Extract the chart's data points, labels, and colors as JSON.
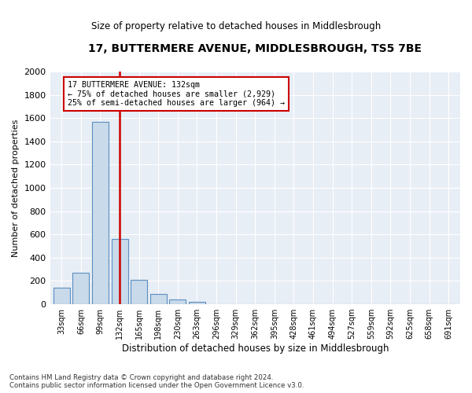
{
  "title": "17, BUTTERMERE AVENUE, MIDDLESBROUGH, TS5 7BE",
  "subtitle": "Size of property relative to detached houses in Middlesbrough",
  "xlabel": "Distribution of detached houses by size in Middlesbrough",
  "ylabel": "Number of detached properties",
  "annotation_line1": "17 BUTTERMERE AVENUE: 132sqm",
  "annotation_line2": "← 75% of detached houses are smaller (2,929)",
  "annotation_line3": "25% of semi-detached houses are larger (964) →",
  "bar_color": "#c9daea",
  "bar_edge_color": "#5a8fc0",
  "vline_color": "#cc0000",
  "vline_x_index": 3,
  "categories": [
    "33sqm",
    "66sqm",
    "99sqm",
    "132sqm",
    "165sqm",
    "198sqm",
    "230sqm",
    "263sqm",
    "296sqm",
    "329sqm",
    "362sqm",
    "395sqm",
    "428sqm",
    "461sqm",
    "494sqm",
    "527sqm",
    "559sqm",
    "592sqm",
    "625sqm",
    "658sqm",
    "691sqm"
  ],
  "values": [
    140,
    270,
    1570,
    560,
    210,
    90,
    40,
    20,
    0,
    0,
    0,
    0,
    0,
    0,
    0,
    0,
    0,
    0,
    0,
    0,
    0
  ],
  "ylim": [
    0,
    2000
  ],
  "yticks": [
    0,
    200,
    400,
    600,
    800,
    1000,
    1200,
    1400,
    1600,
    1800,
    2000
  ],
  "footer1": "Contains HM Land Registry data © Crown copyright and database right 2024.",
  "footer2": "Contains public sector information licensed under the Open Government Licence v3.0.",
  "bg_color": "#ffffff",
  "plot_bg_color": "#e8eef5",
  "grid_color": "#ffffff"
}
